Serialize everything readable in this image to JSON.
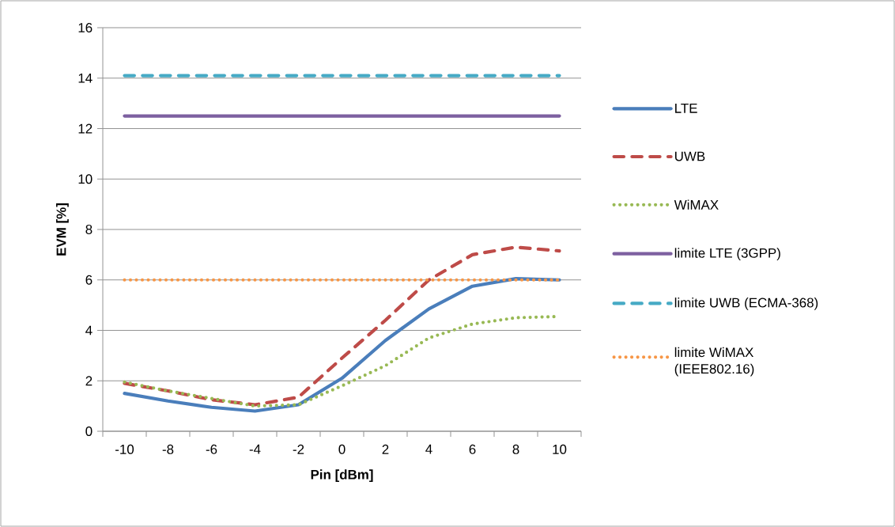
{
  "chart_data": {
    "type": "line",
    "xlabel": "Pin [dBm]",
    "ylabel": "EVM [%]",
    "categories": [
      "-10",
      "-8",
      "-6",
      "-4",
      "-2",
      "0",
      "2",
      "4",
      "6",
      "8",
      "10"
    ],
    "series": [
      {
        "name": "LTE",
        "color": "#4a7ebb",
        "line_style": "solid",
        "values": [
          1.5,
          1.2,
          0.95,
          0.8,
          1.05,
          2.1,
          3.6,
          4.85,
          5.75,
          6.05,
          6.0
        ]
      },
      {
        "name": "UWB",
        "color": "#be4b48",
        "line_style": "dashed",
        "values": [
          1.9,
          1.6,
          1.25,
          1.05,
          1.35,
          2.9,
          4.4,
          6.0,
          7.0,
          7.3,
          7.15
        ]
      },
      {
        "name": "WiMAX",
        "color": "#98b954",
        "line_style": "dotted",
        "values": [
          1.95,
          1.6,
          1.3,
          1.0,
          1.05,
          1.8,
          2.6,
          3.7,
          4.25,
          4.5,
          4.55
        ]
      },
      {
        "name": "limite LTE (3GPP)",
        "color": "#7d60a0",
        "line_style": "solid",
        "values": [
          12.5,
          12.5,
          12.5,
          12.5,
          12.5,
          12.5,
          12.5,
          12.5,
          12.5,
          12.5,
          12.5
        ]
      },
      {
        "name": "limite UWB (ECMA-368)",
        "color": "#46aac5",
        "line_style": "dashed",
        "values": [
          14.1,
          14.1,
          14.1,
          14.1,
          14.1,
          14.1,
          14.1,
          14.1,
          14.1,
          14.1,
          14.1
        ]
      },
      {
        "name": "limite WiMAX (IEEE802.16)",
        "color": "#f79646",
        "line_style": "dotted",
        "values": [
          6.0,
          6.0,
          6.0,
          6.0,
          6.0,
          6.0,
          6.0,
          6.0,
          6.0,
          6.0,
          6.0
        ]
      }
    ],
    "ylim": [
      0,
      16
    ],
    "yticks": [
      0,
      2,
      4,
      6,
      8,
      10,
      12,
      14,
      16
    ],
    "grid": "y",
    "legend": "right"
  }
}
